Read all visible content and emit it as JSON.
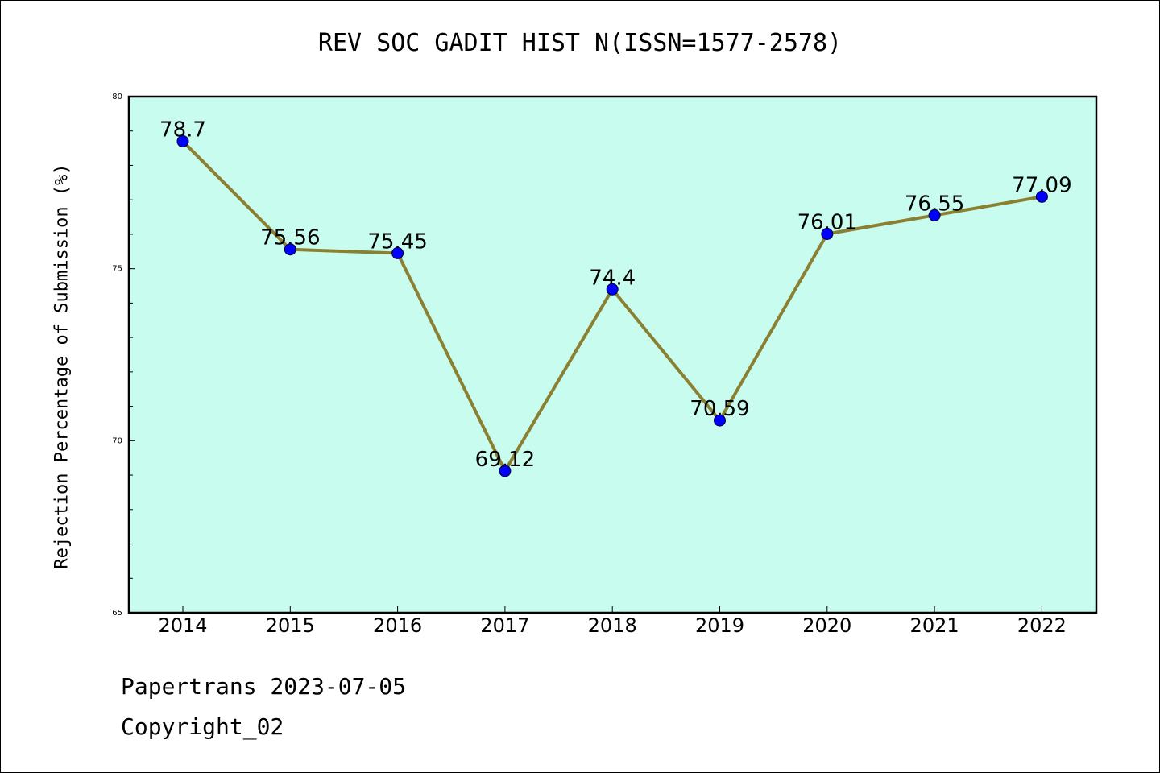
{
  "chart_data": {
    "type": "line",
    "title": "REV SOC GADIT HIST N(ISSN=1577-2578)",
    "xlabel": "",
    "ylabel": "Rejection Percentage of Submission (%)",
    "categories": [
      "2014",
      "2015",
      "2016",
      "2017",
      "2018",
      "2019",
      "2020",
      "2021",
      "2022"
    ],
    "series": [
      {
        "values": [
          78.7,
          75.56,
          75.45,
          69.12,
          74.4,
          70.59,
          76.01,
          76.55,
          77.09
        ],
        "labels": [
          "78.7",
          "75.56",
          "75.45",
          "69.12",
          "74.4",
          "70.59",
          "76.01",
          "76.55",
          "77.09"
        ],
        "line_color": "#8B8032",
        "marker_color": "#0000FF"
      }
    ],
    "ylim": [
      65,
      80
    ],
    "yticks": [
      "65",
      "70",
      "75",
      "80"
    ],
    "grid": false,
    "legend": "none",
    "plot_background": "#C8FCEE"
  },
  "footer": {
    "line1": "Papertrans 2023-07-05",
    "line2": "Copyright_02"
  }
}
